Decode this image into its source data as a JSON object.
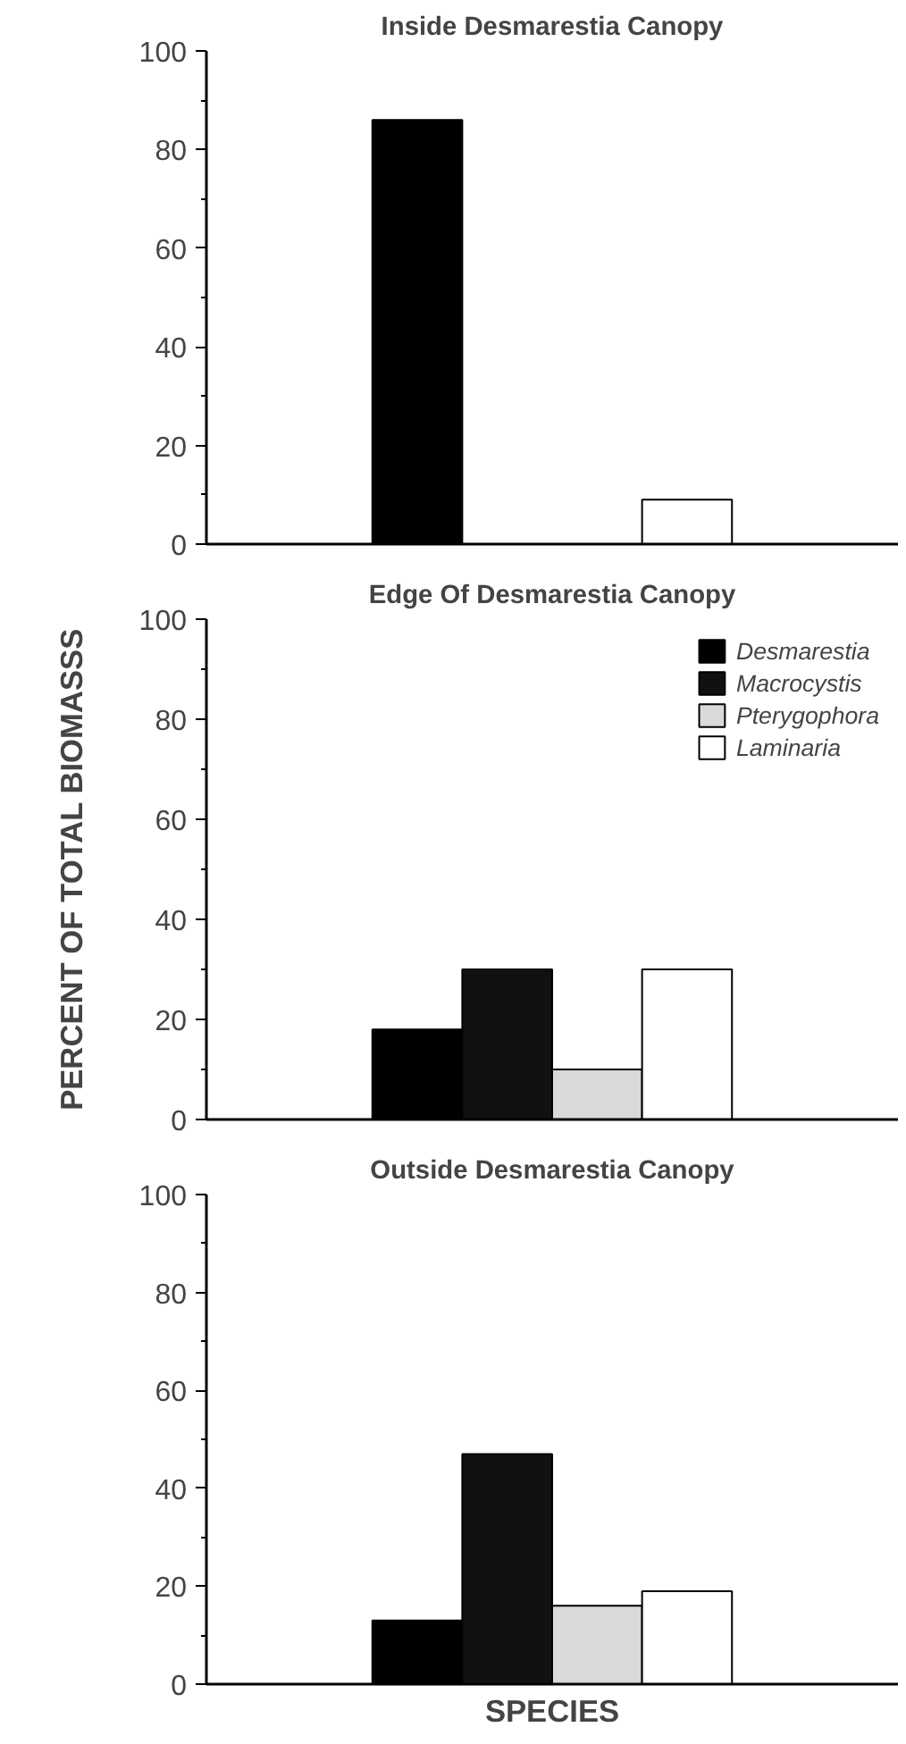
{
  "chart_data": [
    {
      "type": "bar",
      "title": "Inside Desmarestia Canopy",
      "categories": [
        null
      ],
      "ylim": [
        0,
        100
      ],
      "yticks": [
        0,
        {
          "value": 10,
          "label": null
        },
        20,
        {
          "value": 30,
          "label": null
        },
        40,
        {
          "value": 50,
          "label": null
        },
        60,
        {
          "value": 70,
          "label": null
        },
        80,
        {
          "value": 90,
          "label": null
        },
        100
      ],
      "grid": false,
      "legend": false,
      "series": [
        {
          "color": "#000000",
          "values": [
            86
          ]
        },
        {
          "color": "#111111",
          "values": [
            0
          ]
        },
        {
          "color": "#d9d9d9",
          "values": [
            0
          ]
        },
        {
          "color": "#ffffff",
          "values": [
            9
          ]
        }
      ]
    },
    {
      "type": "bar",
      "title": "Edge Of Desmarestia Canopy",
      "ylabel": "PERCENT OF TOTAL BIOMASSS",
      "categories": [
        null
      ],
      "ylim": [
        0,
        100
      ],
      "yticks": [
        0,
        {
          "value": 10,
          "label": null
        },
        20,
        {
          "value": 30,
          "label": null
        },
        40,
        {
          "value": 50,
          "label": null
        },
        60,
        {
          "value": 70,
          "label": null
        },
        80,
        {
          "value": 90,
          "label": null
        },
        100
      ],
      "grid": false,
      "legend": "top right",
      "series": [
        {
          "name": "Desmarestia",
          "color": "#000000",
          "values": [
            18
          ]
        },
        {
          "name": "Macrocystis",
          "color": "#111111",
          "values": [
            30
          ]
        },
        {
          "name": "Pterygophora",
          "color": "#d9d9d9",
          "values": [
            10
          ]
        },
        {
          "name": "Laminaria",
          "color": "#ffffff",
          "values": [
            30
          ]
        }
      ]
    },
    {
      "type": "bar",
      "title": "Outside Desmarestia Canopy",
      "xlabel": "SPECIES",
      "categories": [
        null
      ],
      "ylim": [
        0,
        100
      ],
      "yticks": [
        0,
        {
          "value": 10,
          "label": null
        },
        20,
        {
          "value": 30,
          "label": null
        },
        40,
        {
          "value": 50,
          "label": null
        },
        60,
        {
          "value": 70,
          "label": null
        },
        80,
        {
          "value": 90,
          "label": null
        },
        100
      ],
      "grid": false,
      "legend": false,
      "series": [
        {
          "color": "#000000",
          "values": [
            13
          ]
        },
        {
          "color": "#111111",
          "values": [
            47
          ]
        },
        {
          "color": "#d9d9d9",
          "values": [
            16
          ]
        },
        {
          "color": "#ffffff",
          "values": [
            19
          ]
        }
      ]
    }
  ]
}
